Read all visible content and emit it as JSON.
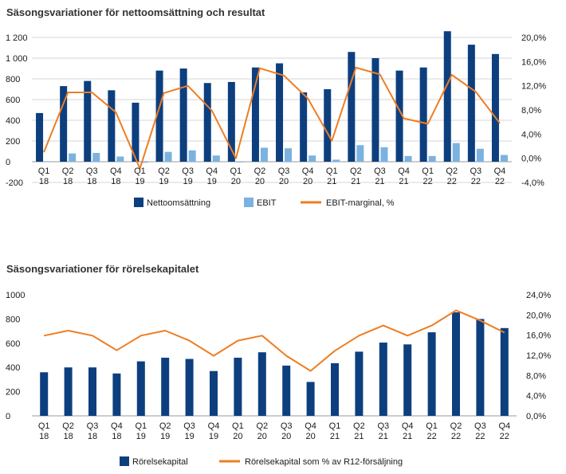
{
  "colors": {
    "navy": "#0d3f7f",
    "light_blue": "#7bb2e0",
    "orange": "#ee7d22",
    "grid": "#d6d6d6"
  },
  "chart_data": [
    {
      "type": "bar",
      "title": "Säsongsvariationer för nettoomsättning och resultat",
      "categories": [
        "Q1 18",
        "Q2 18",
        "Q3 18",
        "Q4 18",
        "Q1 19",
        "Q2 19",
        "Q3 19",
        "Q4 19",
        "Q1 20",
        "Q2 20",
        "Q3 20",
        "Q4 20",
        "Q1 21",
        "Q2 21",
        "Q3 21",
        "Q4 21",
        "Q1 22",
        "Q2 22",
        "Q3 22",
        "Q4 22"
      ],
      "category_lines": [
        [
          "Q1",
          "18"
        ],
        [
          "Q2",
          "18"
        ],
        [
          "Q3",
          "18"
        ],
        [
          "Q4",
          "18"
        ],
        [
          "Q1",
          "19"
        ],
        [
          "Q2",
          "19"
        ],
        [
          "Q3",
          "19"
        ],
        [
          "Q4",
          "19"
        ],
        [
          "Q1",
          "20"
        ],
        [
          "Q2",
          "20"
        ],
        [
          "Q3",
          "20"
        ],
        [
          "Q4",
          "20"
        ],
        [
          "Q1",
          "21"
        ],
        [
          "Q2",
          "21"
        ],
        [
          "Q3",
          "21"
        ],
        [
          "Q4",
          "21"
        ],
        [
          "Q1",
          "22"
        ],
        [
          "Q2",
          "22"
        ],
        [
          "Q3",
          "22"
        ],
        [
          "Q4",
          "22"
        ]
      ],
      "series": [
        {
          "name": "Nettoomsättning",
          "kind": "bar",
          "axis": "left",
          "color": "#0d3f7f",
          "values": [
            470,
            730,
            780,
            690,
            570,
            880,
            900,
            760,
            770,
            910,
            950,
            670,
            700,
            1060,
            1000,
            880,
            910,
            1260,
            1130,
            1040
          ]
        },
        {
          "name": "EBIT",
          "kind": "bar",
          "axis": "left",
          "color": "#7bb2e0",
          "values": [
            5,
            80,
            85,
            50,
            -10,
            95,
            110,
            60,
            0,
            135,
            130,
            60,
            20,
            160,
            140,
            55,
            55,
            180,
            125,
            65
          ]
        },
        {
          "name": "EBIT-marginal, %",
          "kind": "line",
          "axis": "right",
          "color": "#ee7d22",
          "values": [
            1.0,
            10.9,
            10.9,
            7.6,
            -1.7,
            10.8,
            12.0,
            7.9,
            0.0,
            14.9,
            13.7,
            9.9,
            2.9,
            15.0,
            13.9,
            6.6,
            5.7,
            13.8,
            11.0,
            5.8
          ]
        }
      ],
      "y_left": {
        "min": -200,
        "max": 1200,
        "step": 200,
        "ticks": [
          "-200",
          "0",
          "200",
          "400",
          "600",
          "800",
          "1 000",
          "1 200"
        ]
      },
      "y_right": {
        "min": -4,
        "max": 20,
        "step": 4,
        "ticks": [
          "-4,0%",
          "0,0%",
          "4,0%",
          "8,0%",
          "12,0%",
          "16,0%",
          "20,0%"
        ]
      },
      "grid": true,
      "legend_placement": "bottom"
    },
    {
      "type": "bar",
      "title": "Säsongsvariationer för rörelsekapitalet",
      "categories": [
        "Q1 18",
        "Q2 18",
        "Q3 18",
        "Q4 18",
        "Q1 19",
        "Q2 19",
        "Q3 19",
        "Q4 19",
        "Q1 20",
        "Q2 20",
        "Q3 20",
        "Q4 20",
        "Q1 21",
        "Q2 21",
        "Q3 21",
        "Q4 21",
        "Q1 22",
        "Q2 22",
        "Q3 22",
        "Q4 22"
      ],
      "category_lines": [
        [
          "Q1",
          "18"
        ],
        [
          "Q2",
          "18"
        ],
        [
          "Q3",
          "18"
        ],
        [
          "Q4",
          "18"
        ],
        [
          "Q1",
          "19"
        ],
        [
          "Q2",
          "19"
        ],
        [
          "Q3",
          "19"
        ],
        [
          "Q4",
          "19"
        ],
        [
          "Q1",
          "20"
        ],
        [
          "Q2",
          "20"
        ],
        [
          "Q3",
          "20"
        ],
        [
          "Q4",
          "20"
        ],
        [
          "Q1",
          "21"
        ],
        [
          "Q2",
          "21"
        ],
        [
          "Q3",
          "21"
        ],
        [
          "Q4",
          "21"
        ],
        [
          "Q1",
          "22"
        ],
        [
          "Q2",
          "22"
        ],
        [
          "Q3",
          "22"
        ],
        [
          "Q4",
          "22"
        ]
      ],
      "series": [
        {
          "name": "Rörelsekapital",
          "kind": "bar",
          "axis": "left",
          "color": "#0d3f7f",
          "values": [
            360,
            400,
            400,
            350,
            450,
            480,
            470,
            370,
            480,
            525,
            415,
            280,
            435,
            530,
            605,
            590,
            690,
            855,
            800,
            725
          ]
        },
        {
          "name": "Rörelsekapital som % av R12-försäljning",
          "kind": "line",
          "axis": "right",
          "color": "#ee7d22",
          "values": [
            15.9,
            16.9,
            15.9,
            13.0,
            15.9,
            16.9,
            14.9,
            11.9,
            14.9,
            15.9,
            11.9,
            8.9,
            12.9,
            15.9,
            17.9,
            15.9,
            17.9,
            20.9,
            18.9,
            16.5
          ]
        }
      ],
      "y_left": {
        "min": 0,
        "max": 1000,
        "step": 200,
        "ticks": [
          "0",
          "200",
          "400",
          "600",
          "800",
          "1000"
        ]
      },
      "y_right": {
        "min": 0,
        "max": 24,
        "step": 4,
        "ticks": [
          "0,0%",
          "4,0%",
          "8,0%",
          "12,0%",
          "16,0%",
          "20,0%",
          "24,0%"
        ]
      },
      "grid": false,
      "legend_placement": "bottom"
    }
  ]
}
